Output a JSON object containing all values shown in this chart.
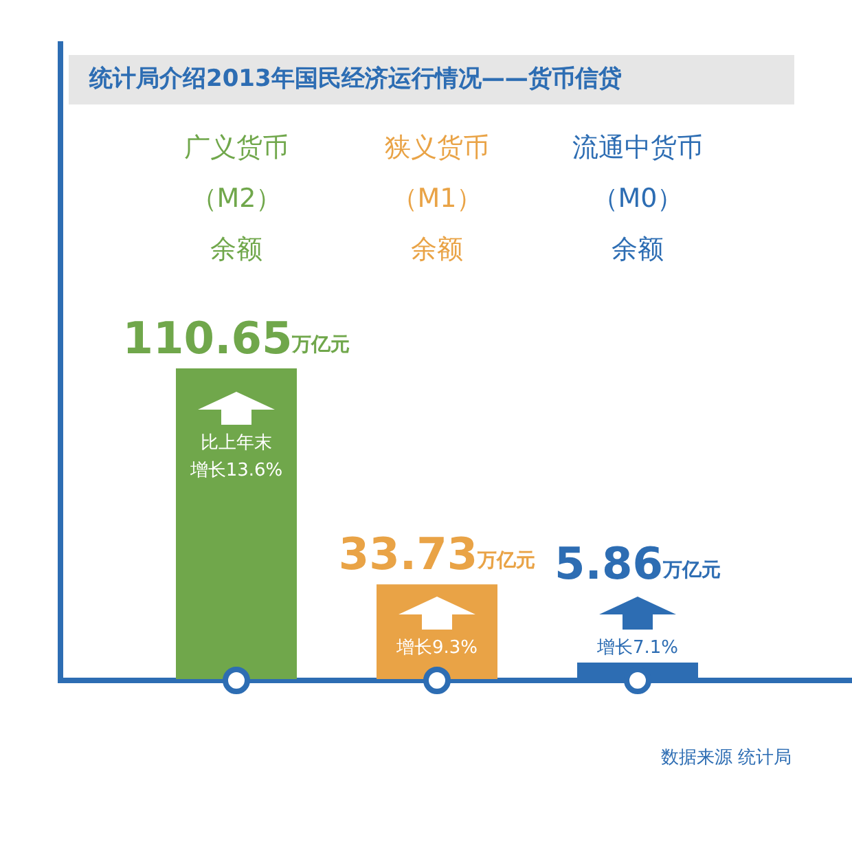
{
  "chart_data": {
    "type": "bar",
    "title": "统计局介绍2013年国民经济运行情况——货币信贷",
    "categories": [
      "广义货币（M2）余额",
      "狭义货币（M1）余额",
      "流通中货币（M0）余额"
    ],
    "values": [
      110.65,
      33.73,
      5.86
    ],
    "colors": [
      "#70a74b",
      "#e9a346",
      "#2d6db3"
    ],
    "value_labels": [
      "110.65万亿元",
      "33.73万亿元",
      "5.86万亿元"
    ],
    "annotations": [
      "比上年末增长13.6%",
      "增长9.3%",
      "增长7.1%",
      "数据来源 统计局"
    ]
  }
}
